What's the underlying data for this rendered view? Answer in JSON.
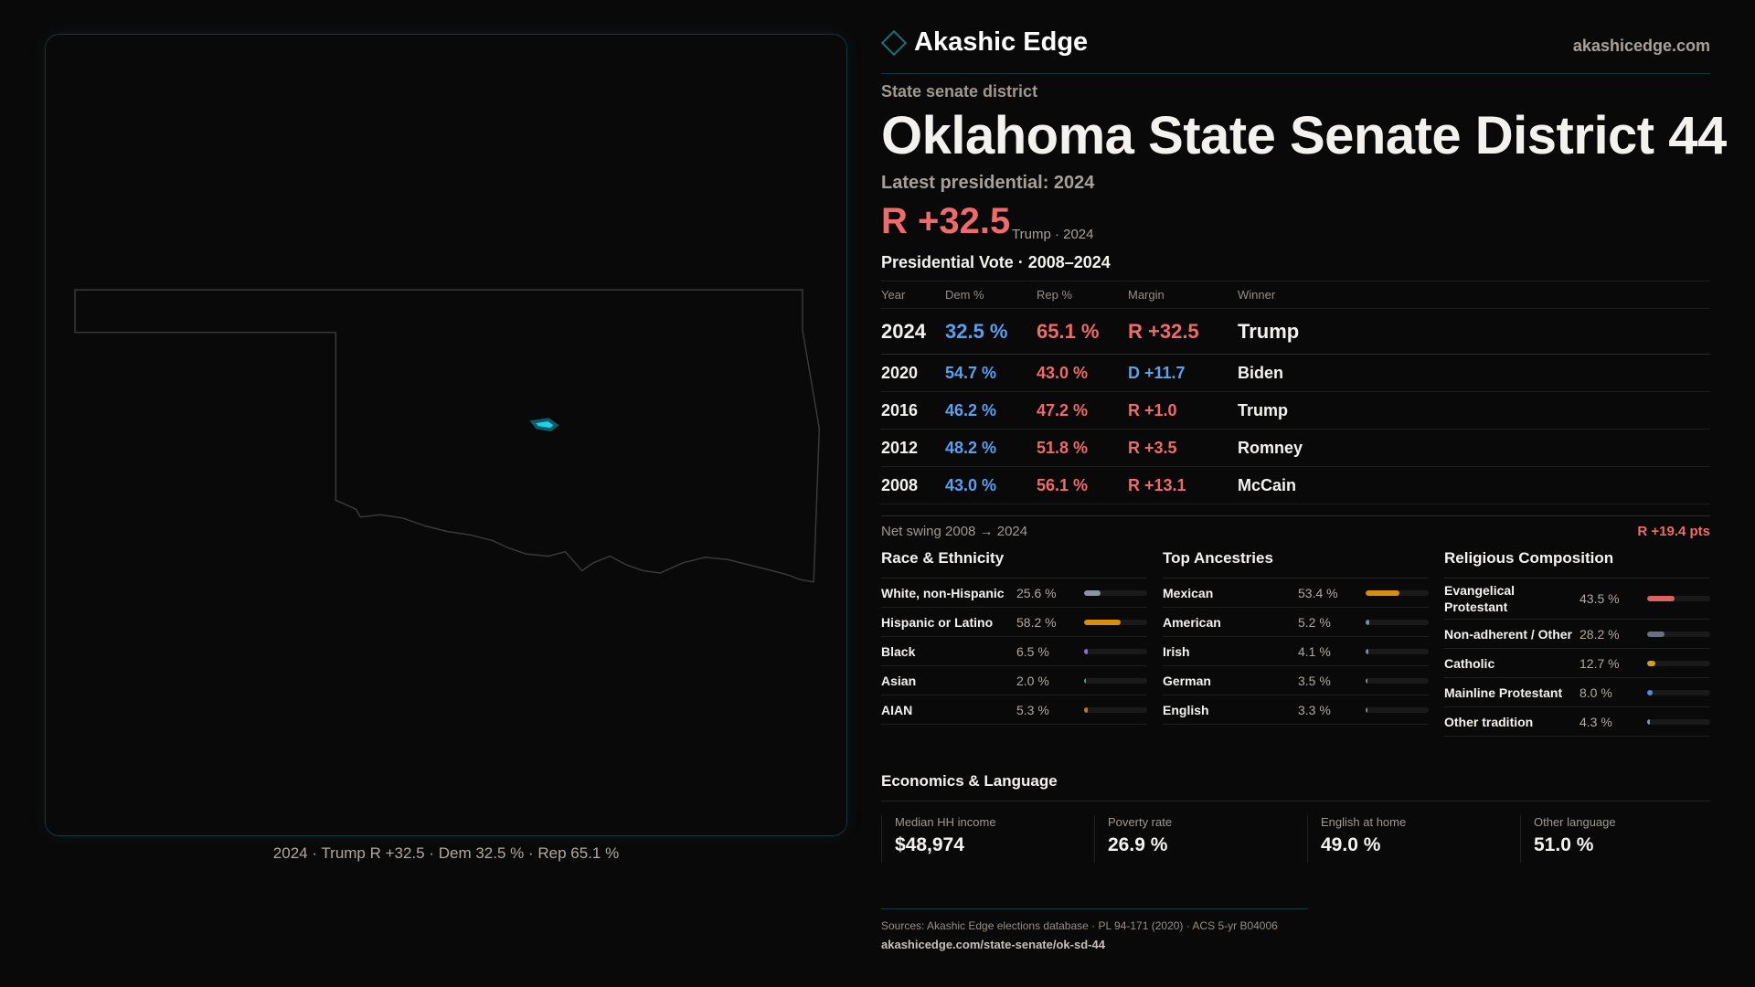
{
  "brand": {
    "name": "Akashic Edge",
    "site": "akashicedge.com"
  },
  "kicker": "State senate district",
  "title": "Oklahoma State Senate District 44",
  "latest": {
    "label": "Latest presidential: 2024",
    "margin": "R +32.5",
    "sub": "Trump · 2024"
  },
  "map": {
    "caption": "2024 · Trump R +32.5 · Dem 32.5 % · Rep 65.1 %",
    "highlight_color": "#19d3ea"
  },
  "vote": {
    "title": "Presidential Vote · 2008–2024",
    "headers": [
      "Year",
      "Dem %",
      "Rep %",
      "Margin",
      "Winner"
    ],
    "rows": [
      {
        "year": "2024",
        "dem": "32.5 %",
        "rep": "65.1 %",
        "margin": "R +32.5",
        "party": "R",
        "winner": "Trump"
      },
      {
        "year": "2020",
        "dem": "54.7 %",
        "rep": "43.0 %",
        "margin": "D +11.7",
        "party": "D",
        "winner": "Biden"
      },
      {
        "year": "2016",
        "dem": "46.2 %",
        "rep": "47.2 %",
        "margin": "R +1.0",
        "party": "R",
        "winner": "Trump"
      },
      {
        "year": "2012",
        "dem": "48.2 %",
        "rep": "51.8 %",
        "margin": "R +3.5",
        "party": "R",
        "winner": "Romney"
      },
      {
        "year": "2008",
        "dem": "43.0 %",
        "rep": "56.1 %",
        "margin": "R +13.1",
        "party": "R",
        "winner": "McCain"
      }
    ],
    "swing_label": "Net swing 2008 → 2024",
    "swing_value": "R +19.4 pts"
  },
  "sections": [
    {
      "title": "Race & Ethnicity",
      "items": [
        {
          "label": "White, non-Hispanic",
          "value": "25.6 %",
          "pct": 25.6,
          "color": "#8a94a6"
        },
        {
          "label": "Hispanic or Latino",
          "value": "58.2 %",
          "pct": 58.2,
          "color": "#d98e0b"
        },
        {
          "label": "Black",
          "value": "6.5 %",
          "pct": 6.5,
          "color": "#8b6fd6"
        },
        {
          "label": "Asian",
          "value": "2.0 %",
          "pct": 2.0,
          "color": "#2bb38a"
        },
        {
          "label": "AIAN",
          "value": "5.3 %",
          "pct": 5.3,
          "color": "#c8741a"
        }
      ]
    },
    {
      "title": "Top Ancestries",
      "items": [
        {
          "label": "Mexican",
          "value": "53.4 %",
          "pct": 53.4,
          "color": "#d98e0b"
        },
        {
          "label": "American",
          "value": "5.2 %",
          "pct": 5.2,
          "color": "#7f8ba0"
        },
        {
          "label": "Irish",
          "value": "4.1 %",
          "pct": 4.1,
          "color": "#7f8ba0"
        },
        {
          "label": "German",
          "value": "3.5 %",
          "pct": 3.5,
          "color": "#7f8ba0"
        },
        {
          "label": "English",
          "value": "3.3 %",
          "pct": 3.3,
          "color": "#7f8ba0"
        }
      ]
    },
    {
      "title": "Religious Composition",
      "items": [
        {
          "label": "Evangelical Protestant",
          "value": "43.5 %",
          "pct": 43.5,
          "color": "#e06060"
        },
        {
          "label": "Non-adherent / Other",
          "value": "28.2 %",
          "pct": 28.2,
          "color": "#6b7080"
        },
        {
          "label": "Catholic",
          "value": "12.7 %",
          "pct": 12.7,
          "color": "#d4a017"
        },
        {
          "label": "Mainline Protestant",
          "value": "8.0 %",
          "pct": 8.0,
          "color": "#4a90e2"
        },
        {
          "label": "Other tradition",
          "value": "4.3 %",
          "pct": 4.3,
          "color": "#8a94a6"
        }
      ]
    }
  ],
  "economics": {
    "title": "Economics & Language",
    "cards": [
      {
        "label": "Median HH income",
        "value": "$48,974"
      },
      {
        "label": "Poverty rate",
        "value": "26.9 %"
      },
      {
        "label": "English at home",
        "value": "49.0 %"
      },
      {
        "label": "Other language",
        "value": "51.0 %"
      }
    ]
  },
  "footer": {
    "sources": "Sources: Akashic Edge elections database · PL 94-171 (2020) · ACS 5-yr B04006",
    "url": "akashicedge.com/state-senate/ok-sd-44"
  }
}
